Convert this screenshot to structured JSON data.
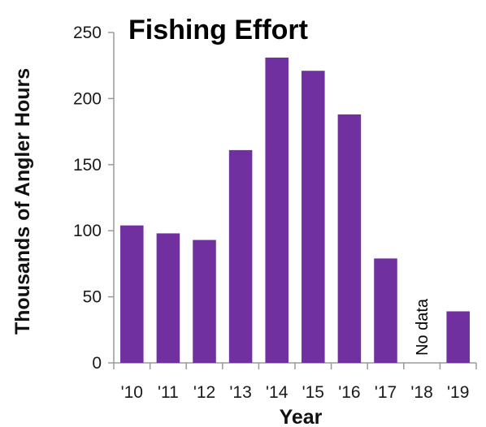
{
  "chart_data": {
    "type": "bar",
    "title": "Fishing Effort",
    "xlabel": "Year",
    "ylabel": "Thousands of Angler Hours",
    "categories": [
      "'10",
      "'11",
      "'12",
      "'13",
      "'14",
      "'15",
      "'16",
      "'17",
      "'18",
      "'19"
    ],
    "values": [
      104,
      98,
      93,
      161,
      231,
      221,
      188,
      79,
      null,
      39
    ],
    "ylim": [
      0,
      250
    ],
    "yticks": [
      0,
      50,
      100,
      150,
      200,
      250
    ],
    "grid": false,
    "legend": "none",
    "annotations": [
      {
        "category": "'18",
        "text": "No data"
      }
    ],
    "colors": {
      "bar": "#7030a0",
      "axis": "#9a9a9a",
      "text": "#000000"
    }
  }
}
